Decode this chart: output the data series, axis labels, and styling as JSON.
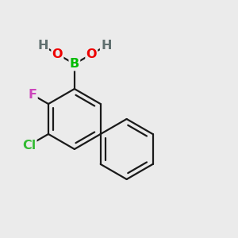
{
  "bg_color": "#ebebeb",
  "bond_color": "#1a1a1a",
  "bond_width": 1.6,
  "atom_colors": {
    "B": "#00bb00",
    "O": "#ee0000",
    "H": "#607070",
    "F": "#cc44bb",
    "Cl": "#33bb33",
    "C": "#1a1a1a"
  },
  "font_size": 11.5
}
